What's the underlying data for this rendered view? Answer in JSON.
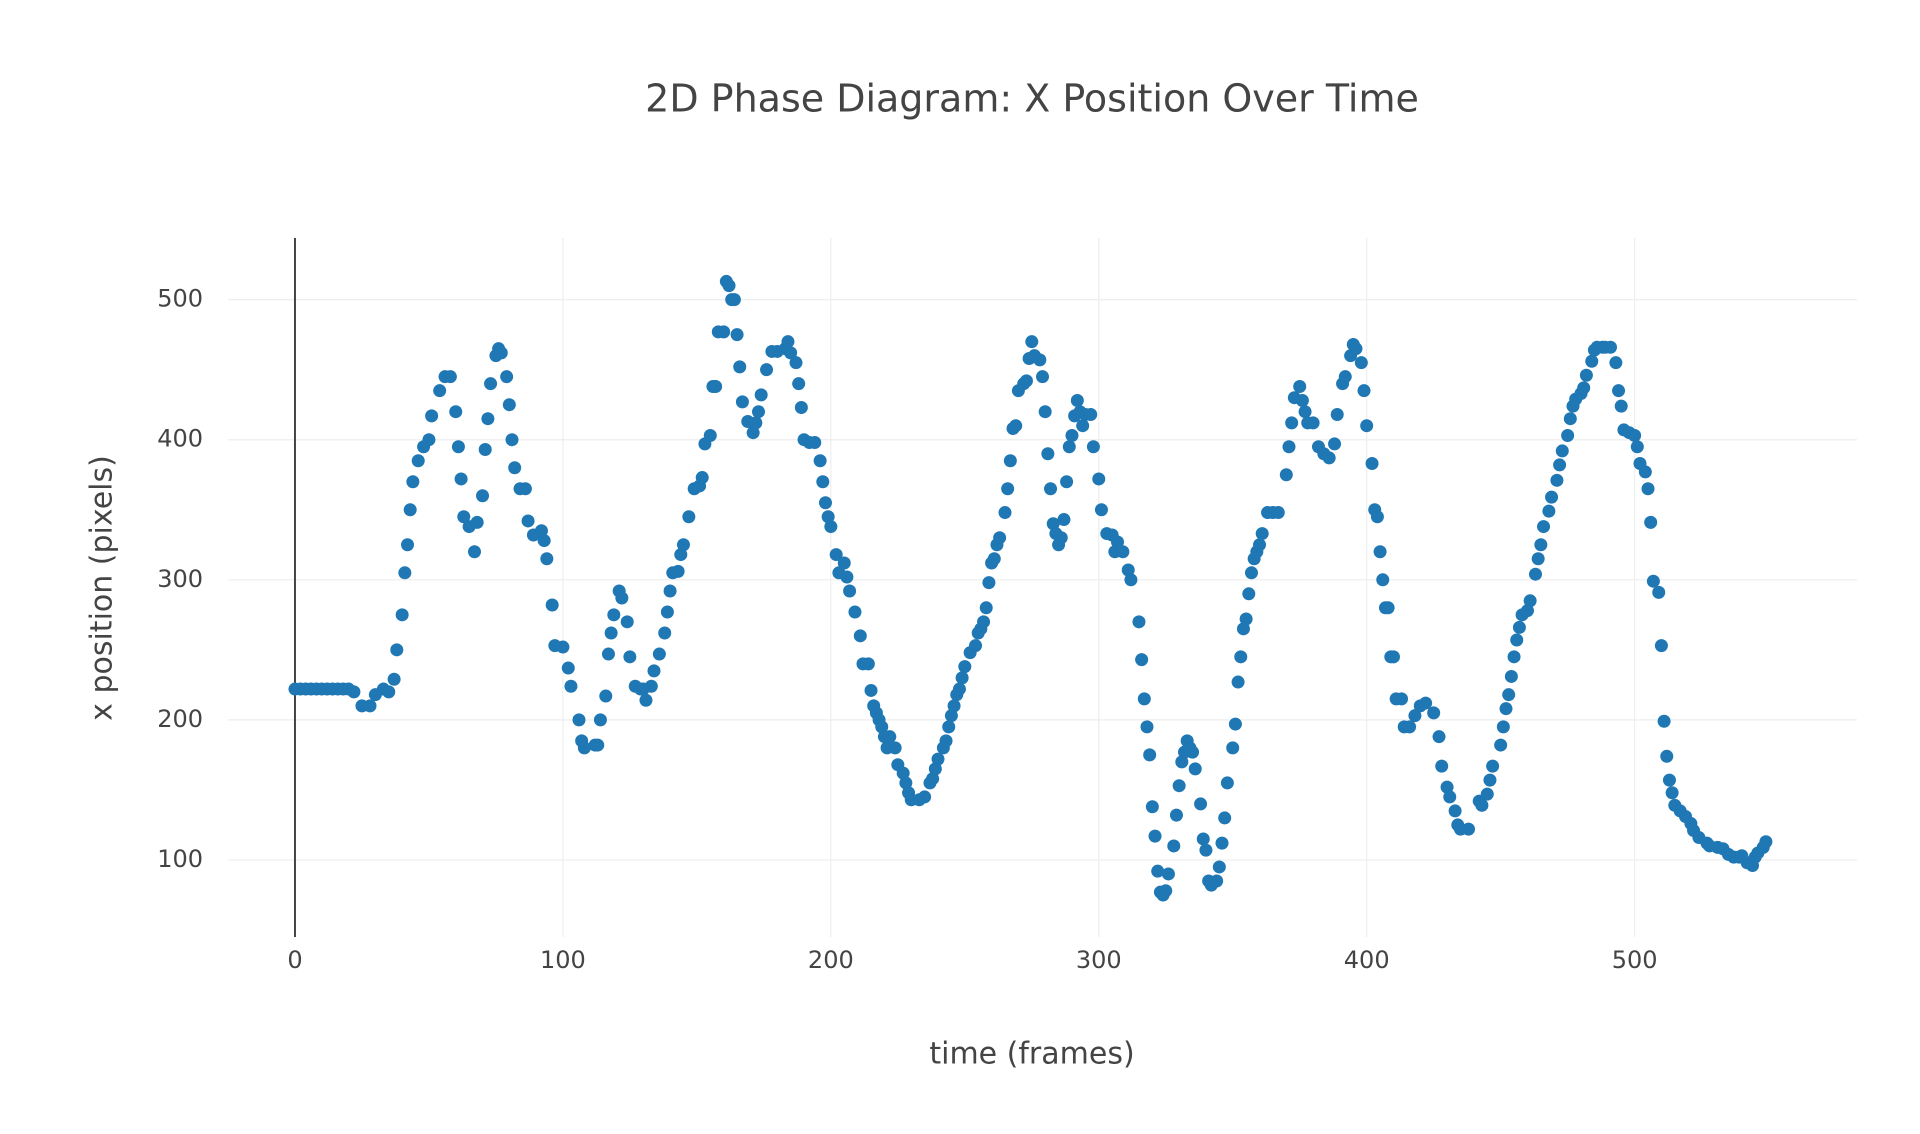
{
  "chart_data": {
    "type": "scatter",
    "title": "2D Phase Diagram: X Position Over Time",
    "xlabel": "time (frames)",
    "ylabel": "x position (pixels)",
    "color": "#1f77b4",
    "xlim": [
      -25,
      583
    ],
    "ylim": [
      45,
      544
    ],
    "xticks": [
      0,
      100,
      200,
      300,
      400,
      500
    ],
    "yticks": [
      100,
      200,
      300,
      400,
      500
    ],
    "grid": true,
    "zeroline": true,
    "x": [
      0,
      2,
      4,
      6,
      8,
      10,
      12,
      14,
      16,
      18,
      20,
      22,
      25,
      28,
      30,
      33,
      35,
      37,
      38,
      40,
      41,
      42,
      43,
      44,
      46,
      48,
      50,
      51,
      54,
      56,
      58,
      60,
      61,
      62,
      63,
      65,
      67,
      68,
      70,
      71,
      72,
      73,
      75,
      76,
      77,
      79,
      80,
      81,
      82,
      84,
      86,
      87,
      89,
      92,
      93,
      94,
      96,
      97,
      100,
      102,
      103,
      106,
      107,
      108,
      112,
      113,
      114,
      116,
      117,
      118,
      119,
      121,
      122,
      124,
      125,
      127,
      129,
      130,
      131,
      133,
      134,
      136,
      138,
      139,
      140,
      141,
      143,
      144,
      145,
      147,
      149,
      151,
      152,
      153,
      155,
      156,
      157,
      158,
      160,
      161,
      162,
      163,
      164,
      165,
      166,
      167,
      169,
      171,
      172,
      173,
      174,
      176,
      178,
      180,
      183,
      184,
      185,
      187,
      188,
      189,
      190,
      192,
      194,
      196,
      197,
      198,
      199,
      200,
      202,
      203,
      205,
      206,
      207,
      209,
      211,
      212,
      214,
      215,
      216,
      217,
      218,
      219,
      220,
      221,
      222,
      224,
      225,
      227,
      228,
      229,
      230,
      233,
      235,
      237,
      238,
      239,
      240,
      242,
      243,
      244,
      245,
      246,
      247,
      248,
      249,
      250,
      252,
      254,
      255,
      256,
      257,
      258,
      259,
      260,
      261,
      262,
      263,
      265,
      266,
      267,
      268,
      269,
      270,
      272,
      273,
      274,
      275,
      276,
      278,
      279,
      280,
      281,
      282,
      283,
      284,
      285,
      286,
      287,
      288,
      289,
      290,
      291,
      292,
      293,
      294,
      295,
      297,
      298,
      300,
      301,
      303,
      305,
      306,
      307,
      309,
      311,
      312,
      315,
      316,
      317,
      318,
      319,
      320,
      321,
      322,
      323,
      324,
      325,
      326,
      328,
      329,
      330,
      331,
      332,
      333,
      334,
      335,
      336,
      338,
      339,
      340,
      341,
      342,
      344,
      345,
      346,
      347,
      348,
      350,
      351,
      352,
      353,
      354,
      355,
      356,
      357,
      358,
      359,
      360,
      361,
      363,
      365,
      367,
      370,
      371,
      372,
      373,
      375,
      376,
      377,
      378,
      380,
      382,
      384,
      386,
      388,
      389,
      391,
      392,
      394,
      395,
      396,
      398,
      399,
      400,
      402,
      403,
      404,
      405,
      406,
      407,
      408,
      409,
      410,
      411,
      413,
      414,
      416,
      418,
      420,
      422,
      425,
      427,
      428,
      430,
      431,
      433,
      434,
      435,
      438,
      442,
      443,
      445,
      446,
      447,
      450,
      451,
      452,
      453,
      454,
      455,
      456,
      457,
      458,
      460,
      461,
      463,
      464,
      465,
      466,
      468,
      469,
      471,
      472,
      473,
      475,
      476,
      477,
      478,
      480,
      481,
      482,
      484,
      485,
      486,
      488,
      489,
      491,
      493,
      494,
      495,
      496,
      498,
      500,
      501,
      502,
      504,
      505,
      506,
      507,
      509,
      510,
      511,
      512,
      513,
      514,
      515,
      517,
      519,
      521,
      522,
      524,
      527,
      528,
      531,
      533,
      535,
      537,
      539,
      540,
      542,
      544,
      545,
      546,
      548,
      549
    ],
    "values": [
      222,
      222,
      222,
      222,
      222,
      222,
      222,
      222,
      222,
      222,
      222,
      220,
      210,
      210,
      218,
      222,
      220,
      229,
      250,
      275,
      305,
      325,
      350,
      370,
      385,
      395,
      400,
      417,
      435,
      445,
      445,
      420,
      395,
      372,
      345,
      338,
      320,
      341,
      360,
      393,
      415,
      440,
      460,
      465,
      462,
      445,
      425,
      400,
      380,
      365,
      365,
      342,
      332,
      335,
      328,
      315,
      282,
      253,
      252,
      237,
      224,
      200,
      185,
      180,
      182,
      182,
      200,
      217,
      247,
      262,
      275,
      292,
      287,
      270,
      245,
      224,
      222,
      222,
      214,
      224,
      235,
      247,
      262,
      277,
      292,
      305,
      306,
      318,
      325,
      345,
      365,
      367,
      373,
      397,
      403,
      438,
      438,
      477,
      477,
      513,
      510,
      500,
      500,
      475,
      452,
      427,
      413,
      405,
      412,
      420,
      432,
      450,
      463,
      463,
      465,
      470,
      462,
      455,
      440,
      423,
      400,
      398,
      398,
      385,
      370,
      355,
      345,
      338,
      318,
      305,
      312,
      302,
      292,
      277,
      260,
      240,
      240,
      221,
      210,
      205,
      200,
      195,
      188,
      180,
      188,
      180,
      168,
      162,
      155,
      148,
      143,
      143,
      145,
      155,
      158,
      165,
      172,
      180,
      185,
      195,
      203,
      210,
      218,
      222,
      230,
      238,
      248,
      253,
      262,
      265,
      270,
      280,
      298,
      312,
      315,
      325,
      330,
      348,
      365,
      385,
      408,
      410,
      435,
      440,
      442,
      458,
      470,
      460,
      457,
      445,
      420,
      390,
      365,
      340,
      333,
      325,
      330,
      343,
      370,
      395,
      403,
      417,
      428,
      420,
      410,
      418,
      418,
      395,
      372,
      350,
      333,
      332,
      320,
      327,
      320,
      307,
      300,
      270,
      243,
      215,
      195,
      175,
      138,
      117,
      92,
      77,
      75,
      78,
      90,
      110,
      132,
      153,
      170,
      177,
      185,
      180,
      177,
      165,
      140,
      115,
      107,
      85,
      82,
      85,
      95,
      112,
      130,
      155,
      180,
      197,
      227,
      245,
      265,
      272,
      290,
      305,
      315,
      320,
      325,
      333,
      348,
      348,
      348,
      375,
      395,
      412,
      430,
      438,
      428,
      420,
      412,
      412,
      395,
      390,
      387,
      397,
      418,
      440,
      445,
      460,
      468,
      465,
      455,
      435,
      410,
      383,
      350,
      345,
      320,
      300,
      280,
      280,
      245,
      245,
      215,
      215,
      195,
      195,
      203,
      210,
      212,
      205,
      188,
      167,
      152,
      145,
      135,
      125,
      122,
      122,
      142,
      139,
      147,
      157,
      167,
      182,
      195,
      208,
      218,
      231,
      245,
      257,
      266,
      275,
      278,
      285,
      304,
      315,
      325,
      338,
      349,
      359,
      371,
      382,
      392,
      403,
      415,
      424,
      429,
      433,
      437,
      446,
      456,
      464,
      466,
      466,
      466,
      466,
      455,
      435,
      424,
      407,
      405,
      403,
      395,
      383,
      377,
      365,
      341,
      299,
      291,
      253,
      199,
      174,
      157,
      148,
      139,
      135,
      131,
      126,
      121,
      116,
      112,
      110,
      109,
      108,
      104,
      102,
      102,
      103,
      98,
      96,
      102,
      105,
      109,
      113
    ]
  }
}
